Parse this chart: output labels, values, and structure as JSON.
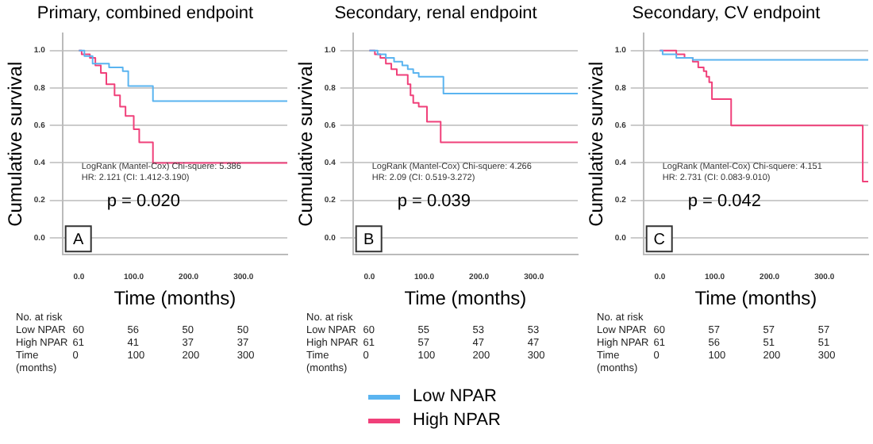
{
  "chart_data": [
    {
      "type": "step",
      "title": "Primary, combined endpoint",
      "xlabel": "Time (months)",
      "ylabel": "Cumulative survival",
      "xlim": [
        -30,
        380
      ],
      "xticks": [
        {
          "value": 0,
          "label": "0.0"
        },
        {
          "value": 100,
          "label": "100.0"
        },
        {
          "value": 200,
          "label": "200.0"
        },
        {
          "value": 300,
          "label": "300.0"
        }
      ],
      "ylim": [
        -0.09,
        1.09
      ],
      "yticks": [
        {
          "value": 0,
          "label": "0.0"
        },
        {
          "value": 0.2,
          "label": "0.2"
        },
        {
          "value": 0.4,
          "label": "0.4"
        },
        {
          "value": 0.6,
          "label": "0.6"
        },
        {
          "value": 0.8,
          "label": "0.8"
        },
        {
          "value": 1,
          "label": "1.0"
        }
      ],
      "grid": "y",
      "legend": false,
      "marker": "none",
      "line_style": "solid",
      "series": [
        {
          "color": "#5ab4f0",
          "x": [
            0,
            10,
            25,
            55,
            80,
            90,
            135,
            380
          ],
          "values": [
            1,
            0.97,
            0.93,
            0.91,
            0.89,
            0.81,
            0.73,
            0.73
          ]
        },
        {
          "color": "#f0407a",
          "x": [
            0,
            5,
            20,
            30,
            40,
            50,
            65,
            75,
            85,
            100,
            110,
            135,
            380
          ],
          "values": [
            1,
            0.98,
            0.96,
            0.92,
            0.88,
            0.82,
            0.76,
            0.7,
            0.65,
            0.58,
            0.51,
            0.4,
            0.4
          ]
        }
      ],
      "annotations": [
        "LogRank (Mantel-Cox) Chi-squere: 5.386",
        "HR: 2.121 (CI: 1.412-3.190)",
        "p = 0.020",
        "A",
        "No. at risk",
        "Low NPAR",
        "60",
        "56",
        "50",
        "50",
        "High NPAR",
        "61",
        "41",
        "37",
        "37",
        "Time",
        "0",
        "100",
        "200",
        "300",
        "(months)"
      ]
    },
    {
      "type": "step",
      "title": "Secondary, renal endpoint",
      "xlabel": "Time (months)",
      "ylabel": "Cumulative survival",
      "xlim": [
        -30,
        380
      ],
      "xticks": [
        {
          "value": 0,
          "label": "0.0"
        },
        {
          "value": 100,
          "label": "100.0"
        },
        {
          "value": 200,
          "label": "200.0"
        },
        {
          "value": 300,
          "label": "300.0"
        }
      ],
      "ylim": [
        -0.09,
        1.09
      ],
      "yticks": [
        {
          "value": 0,
          "label": "0.0"
        },
        {
          "value": 0.2,
          "label": "0.2"
        },
        {
          "value": 0.4,
          "label": "0.4"
        },
        {
          "value": 0.6,
          "label": "0.6"
        },
        {
          "value": 0.8,
          "label": "0.8"
        },
        {
          "value": 1,
          "label": "1.0"
        }
      ],
      "grid": "y",
      "legend": "bottom",
      "marker": "none",
      "line_style": "solid",
      "series": [
        {
          "name": "Low NPAR",
          "color": "#5ab4f0",
          "x": [
            0,
            15,
            30,
            45,
            60,
            70,
            80,
            90,
            135,
            380
          ],
          "values": [
            1,
            0.98,
            0.96,
            0.94,
            0.92,
            0.9,
            0.88,
            0.86,
            0.77,
            0.77
          ]
        },
        {
          "name": "High NPAR",
          "color": "#f0407a",
          "x": [
            0,
            10,
            20,
            30,
            40,
            50,
            70,
            75,
            80,
            90,
            105,
            130,
            380
          ],
          "values": [
            1,
            0.98,
            0.96,
            0.93,
            0.9,
            0.87,
            0.82,
            0.76,
            0.72,
            0.7,
            0.62,
            0.51,
            0.51
          ]
        }
      ],
      "annotations": [
        "LogRank (Mantel-Cox) Chi-squere: 4.266",
        "HR: 2.09 (CI: 0.519-3.272)",
        "p = 0.039",
        "B",
        "No. at risk",
        "Low NPAR",
        "60",
        "55",
        "53",
        "53",
        "High NPAR",
        "61",
        "57",
        "47",
        "47",
        "Time",
        "0",
        "100",
        "200",
        "300",
        "(months)"
      ]
    },
    {
      "type": "step",
      "title": "Secondary, CV endpoint",
      "xlabel": "Time (months)",
      "ylabel": "Cumulative survival",
      "xlim": [
        -30,
        380
      ],
      "xticks": [
        {
          "value": 0,
          "label": "0.0"
        },
        {
          "value": 100,
          "label": "100.0"
        },
        {
          "value": 200,
          "label": "200.0"
        },
        {
          "value": 300,
          "label": "300.0"
        }
      ],
      "ylim": [
        -0.09,
        1.09
      ],
      "yticks": [
        {
          "value": 0,
          "label": "0.0"
        },
        {
          "value": 0.2,
          "label": "0.2"
        },
        {
          "value": 0.4,
          "label": "0.4"
        },
        {
          "value": 0.6,
          "label": "0.6"
        },
        {
          "value": 0.8,
          "label": "0.8"
        },
        {
          "value": 1,
          "label": "1.0"
        }
      ],
      "grid": "y",
      "legend": false,
      "marker": "none",
      "line_style": "solid",
      "series": [
        {
          "color": "#5ab4f0",
          "x": [
            0,
            5,
            30,
            60,
            380
          ],
          "values": [
            1,
            0.98,
            0.96,
            0.95,
            0.95
          ]
        },
        {
          "color": "#f0407a",
          "x": [
            0,
            30,
            45,
            60,
            70,
            80,
            85,
            90,
            95,
            130,
            370,
            380
          ],
          "values": [
            1,
            0.98,
            0.96,
            0.94,
            0.91,
            0.89,
            0.86,
            0.83,
            0.74,
            0.6,
            0.3,
            0.3
          ]
        }
      ],
      "annotations": [
        "LogRank (Mantel-Cox) Chi-squere: 4.151",
        "HR: 2.731 (CI: 0.083-9.010)",
        "p = 0.042",
        "C",
        "No. at risk",
        "Low NPAR",
        "60",
        "57",
        "57",
        "57",
        "High NPAR",
        "61",
        "56",
        "51",
        "51",
        "Time",
        "0",
        "100",
        "200",
        "300",
        "(months)"
      ]
    }
  ]
}
